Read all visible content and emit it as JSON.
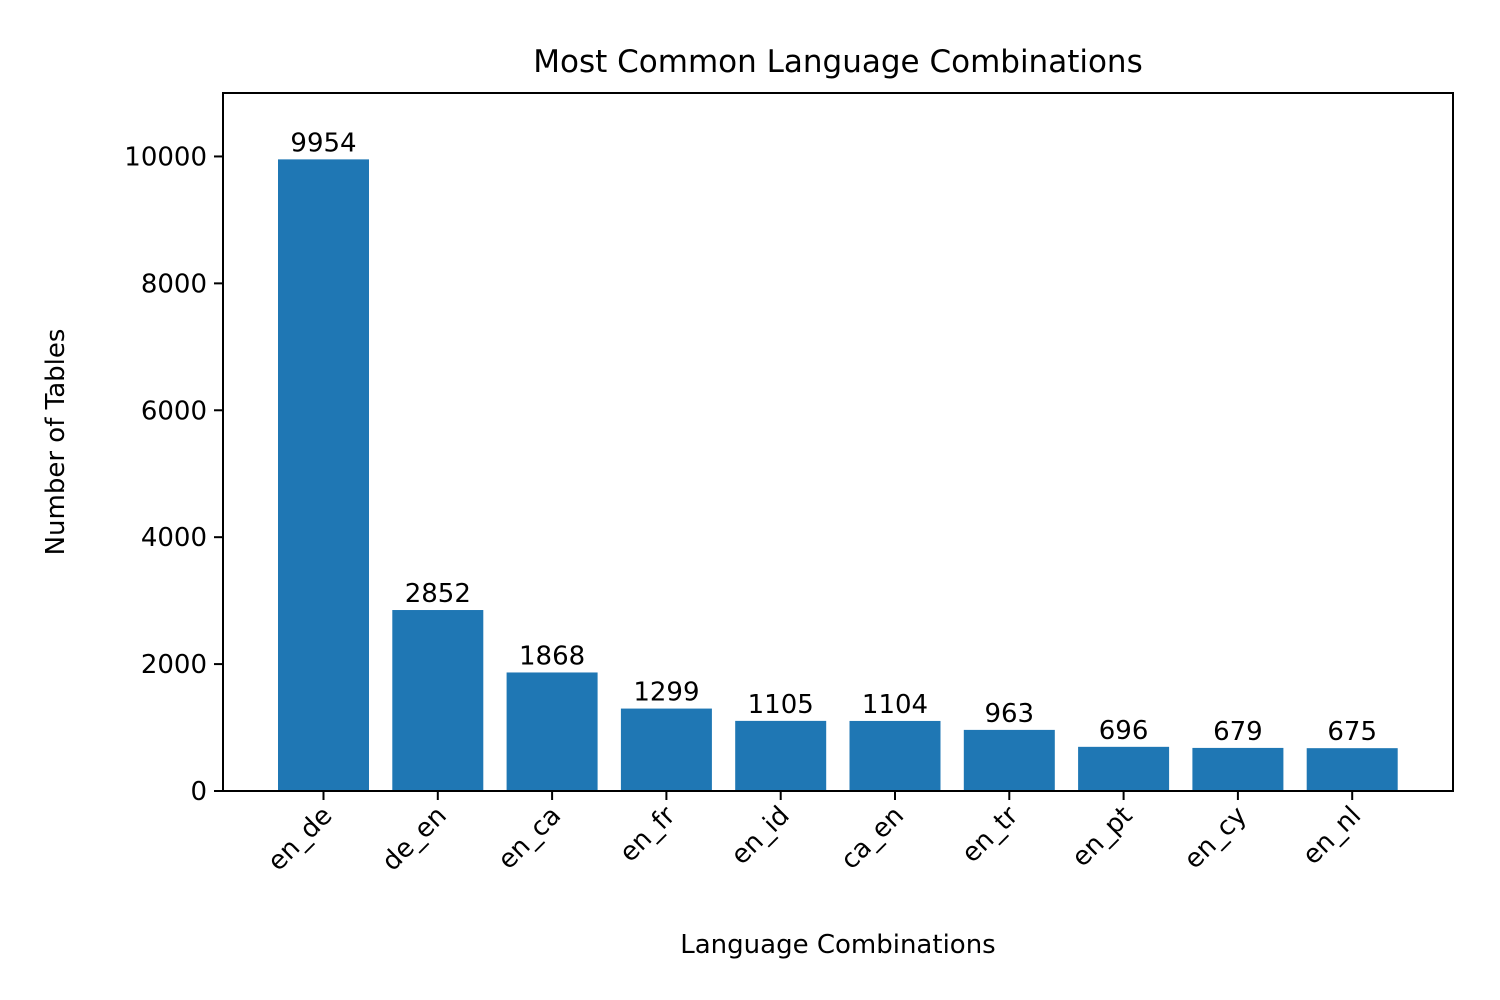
{
  "chart_data": {
    "type": "bar",
    "title": "Most Common Language Combinations",
    "xlabel": "Language Combinations",
    "ylabel": "Number of Tables",
    "categories": [
      "en_de",
      "de_en",
      "en_ca",
      "en_fr",
      "en_id",
      "ca_en",
      "en_tr",
      "en_pt",
      "en_cy",
      "en_nl"
    ],
    "values": [
      9954,
      2852,
      1868,
      1299,
      1105,
      1104,
      963,
      696,
      679,
      675
    ],
    "data_labels": [
      "9954",
      "2852",
      "1868",
      "1299",
      "1105",
      "1104",
      "963",
      "696",
      "679",
      "675"
    ],
    "ylim": [
      0,
      11000
    ],
    "yticks": [
      0,
      2000,
      4000,
      6000,
      8000,
      10000
    ],
    "ytick_labels": [
      "0",
      "2000",
      "4000",
      "6000",
      "8000",
      "10000"
    ],
    "bar_color": "#1f77b4",
    "grid": false,
    "legend": "none"
  }
}
